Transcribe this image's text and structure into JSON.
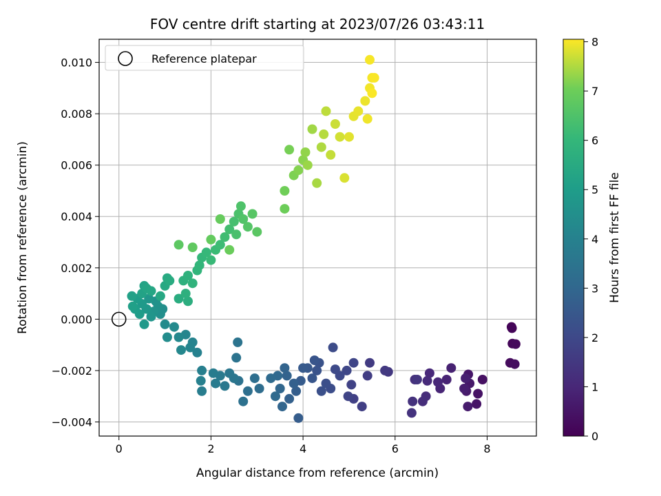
{
  "chart_data": {
    "type": "scatter",
    "title": "FOV centre drift starting at 2023/07/26 03:43:11",
    "xlabel": "Angular distance from reference (arcmin)",
    "ylabel": "Rotation from reference (arcmin)",
    "xlim": [
      -0.43,
      9.07
    ],
    "ylim": [
      -0.00455,
      0.0109
    ],
    "x_ticks": [
      0,
      2,
      4,
      6,
      8
    ],
    "x_tick_labels": [
      "0",
      "2",
      "4",
      "6",
      "8"
    ],
    "y_ticks": [
      -0.004,
      -0.002,
      0.0,
      0.002,
      0.004,
      0.006,
      0.008,
      0.01
    ],
    "y_tick_labels": [
      "−0.004",
      "−0.002",
      "0.000",
      "0.002",
      "0.004",
      "0.006",
      "0.008",
      "0.010"
    ],
    "grid": true,
    "legend": {
      "placement": "top-left",
      "entries": [
        "Reference platepar"
      ]
    },
    "reference_point": {
      "x": 0.0,
      "y": 0.0
    },
    "colorbar": {
      "label": "Hours from first FF file",
      "range": [
        0,
        8.05
      ],
      "ticks": [
        0,
        1,
        2,
        3,
        4,
        5,
        6,
        7,
        8
      ],
      "tick_labels": [
        "0",
        "1",
        "2",
        "3",
        "4",
        "5",
        "6",
        "7",
        "8"
      ],
      "colormap": "viridis"
    },
    "series": [
      {
        "points": [
          [
            8.53,
            -0.0003,
            0.05
          ],
          [
            8.54,
            -0.00035,
            0.1
          ],
          [
            8.55,
            -0.00095,
            0.15
          ],
          [
            8.62,
            -0.00097,
            0.2
          ],
          [
            8.5,
            -0.0017,
            0.25
          ],
          [
            8.6,
            -0.00175,
            0.3
          ],
          [
            7.9,
            -0.00235,
            0.4
          ],
          [
            7.8,
            -0.0029,
            0.45
          ],
          [
            7.77,
            -0.0033,
            0.5
          ],
          [
            7.59,
            -0.00215,
            0.55
          ],
          [
            7.62,
            -0.0025,
            0.6
          ],
          [
            7.55,
            -0.0028,
            0.65
          ],
          [
            7.58,
            -0.0034,
            0.7
          ],
          [
            7.5,
            -0.0027,
            0.75
          ],
          [
            7.53,
            -0.0023,
            0.8
          ],
          [
            7.22,
            -0.0019,
            0.85
          ],
          [
            7.12,
            -0.00235,
            0.9
          ],
          [
            6.98,
            -0.0027,
            0.95
          ],
          [
            6.93,
            -0.00245,
            1.0
          ],
          [
            6.75,
            -0.0021,
            1.05
          ],
          [
            6.7,
            -0.0024,
            1.1
          ],
          [
            6.67,
            -0.003,
            1.15
          ],
          [
            6.6,
            -0.0032,
            1.2
          ],
          [
            6.43,
            -0.00235,
            1.25
          ],
          [
            6.38,
            -0.0032,
            1.3
          ],
          [
            6.36,
            -0.00365,
            1.35
          ],
          [
            6.48,
            -0.00235,
            1.4
          ],
          [
            5.85,
            -0.00205,
            1.5
          ],
          [
            5.78,
            -0.002,
            1.55
          ],
          [
            5.45,
            -0.0017,
            1.6
          ],
          [
            5.4,
            -0.0022,
            1.65
          ],
          [
            5.28,
            -0.0034,
            1.7
          ],
          [
            5.1,
            -0.0031,
            1.75
          ],
          [
            5.05,
            -0.00255,
            1.8
          ],
          [
            4.98,
            -0.003,
            1.85
          ],
          [
            5.1,
            -0.0017,
            1.9
          ],
          [
            4.95,
            -0.002,
            1.95
          ],
          [
            4.8,
            -0.0022,
            2.0
          ],
          [
            4.7,
            -0.00195,
            2.05
          ],
          [
            4.65,
            -0.0011,
            2.1
          ],
          [
            4.6,
            -0.0027,
            2.15
          ],
          [
            4.5,
            -0.0025,
            2.2
          ],
          [
            4.4,
            -0.0028,
            2.25
          ],
          [
            4.35,
            -0.0017,
            2.3
          ],
          [
            4.3,
            -0.002,
            2.35
          ],
          [
            4.25,
            -0.0016,
            2.4
          ],
          [
            4.2,
            -0.0023,
            2.45
          ],
          [
            4.1,
            -0.0019,
            2.5
          ],
          [
            4.0,
            -0.0019,
            2.55
          ],
          [
            3.95,
            -0.0024,
            2.6
          ],
          [
            3.9,
            -0.00385,
            2.65
          ],
          [
            3.85,
            -0.0028,
            2.7
          ],
          [
            3.8,
            -0.0025,
            2.75
          ],
          [
            3.7,
            -0.0031,
            2.8
          ],
          [
            3.65,
            -0.0022,
            2.85
          ],
          [
            3.6,
            -0.0019,
            2.9
          ],
          [
            3.55,
            -0.0034,
            2.95
          ],
          [
            3.5,
            -0.0027,
            3.0
          ],
          [
            3.45,
            -0.0022,
            3.05
          ],
          [
            3.4,
            -0.003,
            3.1
          ],
          [
            3.3,
            -0.0023,
            3.15
          ],
          [
            3.05,
            -0.0027,
            3.2
          ],
          [
            2.95,
            -0.0023,
            3.25
          ],
          [
            2.8,
            -0.0028,
            3.3
          ],
          [
            2.7,
            -0.0032,
            3.35
          ],
          [
            2.6,
            -0.0024,
            3.4
          ],
          [
            2.55,
            -0.0015,
            3.45
          ],
          [
            2.58,
            -0.0009,
            3.5
          ],
          [
            2.5,
            -0.0023,
            3.55
          ],
          [
            2.4,
            -0.0021,
            3.6
          ],
          [
            2.3,
            -0.0026,
            3.65
          ],
          [
            2.2,
            -0.0022,
            3.7
          ],
          [
            2.1,
            -0.0025,
            3.75
          ],
          [
            2.05,
            -0.0021,
            3.8
          ],
          [
            1.8,
            -0.0028,
            3.85
          ],
          [
            1.8,
            -0.002,
            3.9
          ],
          [
            1.78,
            -0.0024,
            3.95
          ],
          [
            1.7,
            -0.0013,
            4.0
          ],
          [
            1.6,
            -0.0009,
            4.05
          ],
          [
            1.55,
            -0.0011,
            4.1
          ],
          [
            1.45,
            -0.0006,
            4.15
          ],
          [
            1.35,
            -0.0012,
            4.2
          ],
          [
            1.3,
            -0.0007,
            4.25
          ],
          [
            1.2,
            -0.0003,
            4.3
          ],
          [
            1.0,
            -0.0002,
            4.35
          ],
          [
            1.05,
            -0.0007,
            4.4
          ],
          [
            0.95,
            0.0004,
            4.45
          ],
          [
            0.9,
            0.0002,
            4.5
          ],
          [
            0.85,
            0.0005,
            4.55
          ],
          [
            0.8,
            0.0007,
            4.6
          ],
          [
            0.75,
            0.0003,
            4.65
          ],
          [
            0.7,
            0.0001,
            4.7
          ],
          [
            0.65,
            0.0008,
            4.75
          ],
          [
            0.6,
            0.0004,
            4.8
          ],
          [
            0.55,
            -0.0002,
            4.85
          ],
          [
            0.5,
            0.0006,
            4.9
          ],
          [
            0.45,
            0.0002,
            4.95
          ],
          [
            0.4,
            0.0008,
            5.0
          ],
          [
            0.35,
            0.0004,
            5.05
          ],
          [
            0.3,
            0.0005,
            5.1
          ],
          [
            0.28,
            0.0009,
            5.15
          ],
          [
            0.5,
            0.001,
            5.2
          ],
          [
            0.55,
            0.0013,
            5.25
          ],
          [
            0.6,
            0.0012,
            5.3
          ],
          [
            0.7,
            0.0011,
            5.35
          ],
          [
            0.9,
            0.0009,
            5.4
          ],
          [
            1.0,
            0.0013,
            5.45
          ],
          [
            1.05,
            0.0016,
            5.5
          ],
          [
            1.1,
            0.0015,
            5.55
          ],
          [
            1.3,
            0.0008,
            5.6
          ],
          [
            1.5,
            0.0007,
            5.65
          ],
          [
            1.45,
            0.001,
            5.7
          ],
          [
            1.4,
            0.0015,
            5.75
          ],
          [
            1.5,
            0.0017,
            5.8
          ],
          [
            1.6,
            0.0014,
            5.85
          ],
          [
            1.7,
            0.0019,
            5.9
          ],
          [
            1.75,
            0.0021,
            5.95
          ],
          [
            1.8,
            0.0024,
            6.0
          ],
          [
            1.9,
            0.0026,
            6.05
          ],
          [
            2.0,
            0.0023,
            6.1
          ],
          [
            2.1,
            0.0027,
            6.15
          ],
          [
            2.2,
            0.0029,
            6.2
          ],
          [
            2.3,
            0.0032,
            6.25
          ],
          [
            2.4,
            0.0035,
            6.3
          ],
          [
            2.5,
            0.0038,
            6.35
          ],
          [
            2.55,
            0.0033,
            6.4
          ],
          [
            2.6,
            0.0041,
            6.45
          ],
          [
            2.65,
            0.0044,
            6.5
          ],
          [
            2.7,
            0.0039,
            6.55
          ],
          [
            2.8,
            0.0036,
            6.6
          ],
          [
            2.9,
            0.0041,
            6.65
          ],
          [
            3.0,
            0.0034,
            6.7
          ],
          [
            1.3,
            0.0029,
            6.75
          ],
          [
            1.6,
            0.0028,
            6.8
          ],
          [
            2.0,
            0.0031,
            6.85
          ],
          [
            2.2,
            0.0039,
            6.9
          ],
          [
            2.4,
            0.0027,
            6.95
          ],
          [
            3.6,
            0.0043,
            7.0
          ],
          [
            3.6,
            0.005,
            7.05
          ],
          [
            3.7,
            0.0066,
            7.1
          ],
          [
            3.8,
            0.0056,
            7.15
          ],
          [
            3.9,
            0.0058,
            7.2
          ],
          [
            4.0,
            0.0062,
            7.25
          ],
          [
            4.05,
            0.0065,
            7.3
          ],
          [
            4.1,
            0.006,
            7.35
          ],
          [
            4.2,
            0.0074,
            7.4
          ],
          [
            4.3,
            0.0053,
            7.45
          ],
          [
            4.4,
            0.0067,
            7.5
          ],
          [
            4.45,
            0.0072,
            7.55
          ],
          [
            4.5,
            0.0081,
            7.6
          ],
          [
            4.6,
            0.0064,
            7.65
          ],
          [
            4.7,
            0.0076,
            7.7
          ],
          [
            4.8,
            0.0071,
            7.75
          ],
          [
            4.9,
            0.0055,
            7.8
          ],
          [
            5.0,
            0.0071,
            7.85
          ],
          [
            5.1,
            0.0079,
            7.88
          ],
          [
            5.2,
            0.0081,
            7.9
          ],
          [
            5.35,
            0.0085,
            7.93
          ],
          [
            5.4,
            0.0078,
            7.95
          ],
          [
            5.45,
            0.009,
            7.97
          ],
          [
            5.5,
            0.0094,
            7.99
          ],
          [
            5.45,
            0.0101,
            8.0
          ],
          [
            5.55,
            0.0094,
            8.02
          ],
          [
            5.5,
            0.0088,
            8.03
          ]
        ]
      }
    ]
  }
}
